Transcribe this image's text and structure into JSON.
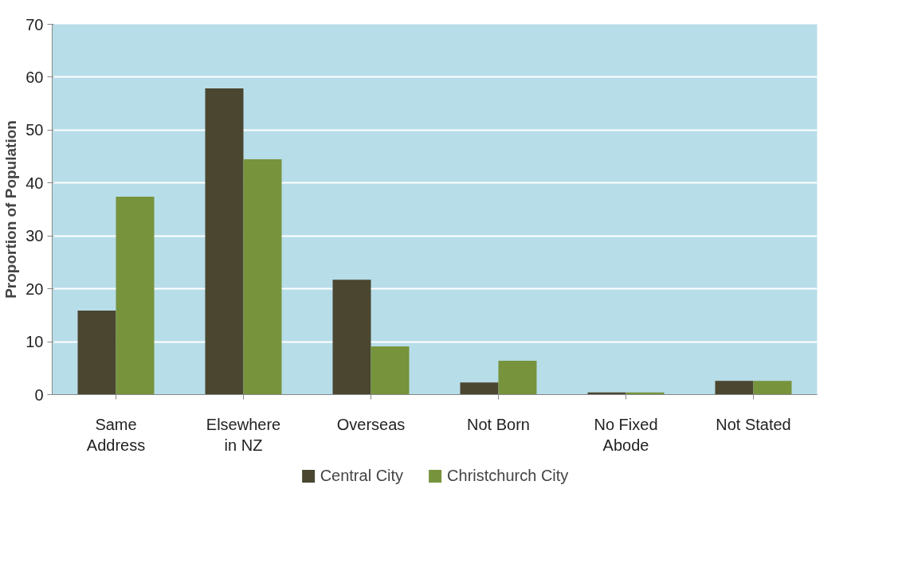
{
  "chart_data": {
    "type": "bar",
    "ylabel": "Proportion of Population",
    "categories": [
      "Same\nAddress",
      "Elsewhere\nin NZ",
      "Overseas",
      "Not Born",
      "No Fixed\nAbode",
      "Not Stated"
    ],
    "series": [
      {
        "name": "Central City",
        "color": "#4b4630",
        "values": [
          15.9,
          57.9,
          21.7,
          2.3,
          0.4,
          2.6
        ]
      },
      {
        "name": "Christchurch City",
        "color": "#77933c",
        "values": [
          37.4,
          44.5,
          9.1,
          6.4,
          0.4,
          2.6
        ]
      }
    ],
    "ylim": [
      0,
      70
    ],
    "yticks": [
      0,
      10,
      20,
      30,
      40,
      50,
      60,
      70
    ],
    "grid": "y",
    "legend": "bottom"
  }
}
